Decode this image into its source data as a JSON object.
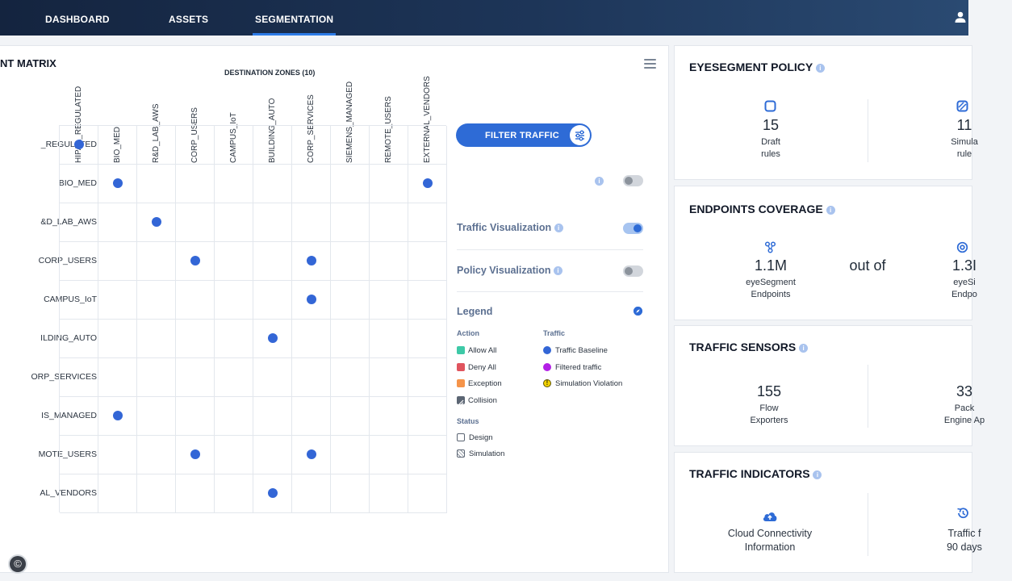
{
  "nav": {
    "tabs": [
      "DASHBOARD",
      "ASSETS",
      "SEGMENTATION"
    ],
    "active_tab": "SEGMENTATION"
  },
  "matrix": {
    "title": "NT MATRIX",
    "destination_title": "DESTINATION ZONES  (10)",
    "columns": [
      "HIPAA_REGULATED",
      "BIO_MED",
      "R&D_LAB_AWS",
      "CORP_USERS",
      "CAMPUS_IoT",
      "BUILDING_AUTO",
      "CORP_SERVICES",
      "SIEMENS_MANAGED",
      "REMOTE_USERS",
      "EXTERNAL_VENDORS"
    ],
    "rows": [
      "_REGULATED",
      "BIO_MED",
      "&D_LAB_AWS",
      "CORP_USERS",
      "CAMPUS_IoT",
      "ILDING_AUTO",
      "ORP_SERVICES",
      "IS_MANAGED",
      "MOTE_USERS",
      "AL_VENDORS"
    ],
    "traffic_cells": [
      [
        0,
        0
      ],
      [
        1,
        1
      ],
      [
        1,
        9
      ],
      [
        2,
        2
      ],
      [
        3,
        3
      ],
      [
        3,
        6
      ],
      [
        4,
        6
      ],
      [
        5,
        5
      ],
      [
        7,
        1
      ],
      [
        8,
        3
      ],
      [
        8,
        6
      ],
      [
        9,
        5
      ]
    ]
  },
  "controls": {
    "filter_label": "FILTER TRAFFIC",
    "traffic_vis_label": "Traffic Visualization",
    "traffic_vis_on": true,
    "policy_vis_label": "Policy Visualization",
    "policy_vis_on": false,
    "filter_toggle_on": false
  },
  "legend": {
    "title": "Legend",
    "action_head": "Action",
    "traffic_head": "Traffic",
    "status_head": "Status",
    "actions": [
      {
        "label": "Allow All",
        "color": "#3ec9a7"
      },
      {
        "label": "Deny All",
        "color": "#e0545e"
      },
      {
        "label": "Exception",
        "color": "#f5944a"
      },
      {
        "label": "Collision",
        "color": "#5b6573"
      }
    ],
    "traffic": [
      {
        "label": "Traffic Baseline",
        "color": "#3366d6"
      },
      {
        "label": "Filtered traffic",
        "color": "#b31fe6"
      },
      {
        "label": "Simulation Violation",
        "color": "#f2d200"
      }
    ],
    "status": [
      {
        "label": "Design"
      },
      {
        "label": "Simulation"
      }
    ]
  },
  "policy": {
    "title": "EYESEGMENT POLICY",
    "left_value": "15",
    "left_line1": "Draft",
    "left_line2": "rules",
    "right_value": "11",
    "right_line1": "Simula",
    "right_line2": "rule"
  },
  "coverage": {
    "title": "ENDPOINTS COVERAGE",
    "left_value": "1.1M",
    "left_line1": "eyeSegment",
    "left_line2": "Endpoints",
    "middle": "out of",
    "right_value": "1.3I",
    "right_line1": "eyeSi",
    "right_line2": "Endpo"
  },
  "sensors": {
    "title": "TRAFFIC SENSORS",
    "left_value": "155",
    "left_line1": "Flow",
    "left_line2": "Exporters",
    "right_value": "33",
    "right_line1": "Pack",
    "right_line2": "Engine Ap"
  },
  "indicators": {
    "title": "TRAFFIC INDICATORS",
    "left_line1": "Cloud Connectivity",
    "left_line2": "Information",
    "right_line1": "Traffic f",
    "right_line2": "90 days"
  },
  "footer": {
    "copyright": "©"
  }
}
